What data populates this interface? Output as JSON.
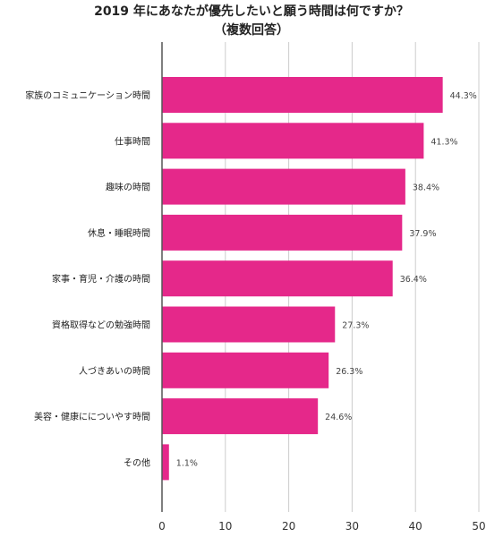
{
  "chart_data": {
    "type": "bar",
    "orientation": "horizontal",
    "title": "2019 年にあなたが優先したいと願う時間は何ですか？",
    "subtitle": "（複数回答）",
    "categories": [
      "家族のコミュニケーション時間",
      "仕事時間",
      "趣味の時間",
      "休息・睡眠時間",
      "家事・育児・介護の時間",
      "資格取得などの勉強時間",
      "人づきあいの時間",
      "美容・健康にについやす時間",
      "その他"
    ],
    "values": [
      44.3,
      41.3,
      38.4,
      37.9,
      36.4,
      27.3,
      26.3,
      24.6,
      1.1
    ],
    "value_labels": [
      "44.3%",
      "41.3%",
      "38.4%",
      "37.9%",
      "36.4%",
      "27.3%",
      "26.3%",
      "24.6%",
      "1.1%"
    ],
    "xlim": [
      0,
      50
    ],
    "x_ticks": [
      "0",
      "10",
      "20",
      "30",
      "40",
      "50"
    ],
    "grid": true,
    "bar_color": "#e5288a",
    "grid_color": "#cccccc",
    "axis_color": "#555555"
  }
}
